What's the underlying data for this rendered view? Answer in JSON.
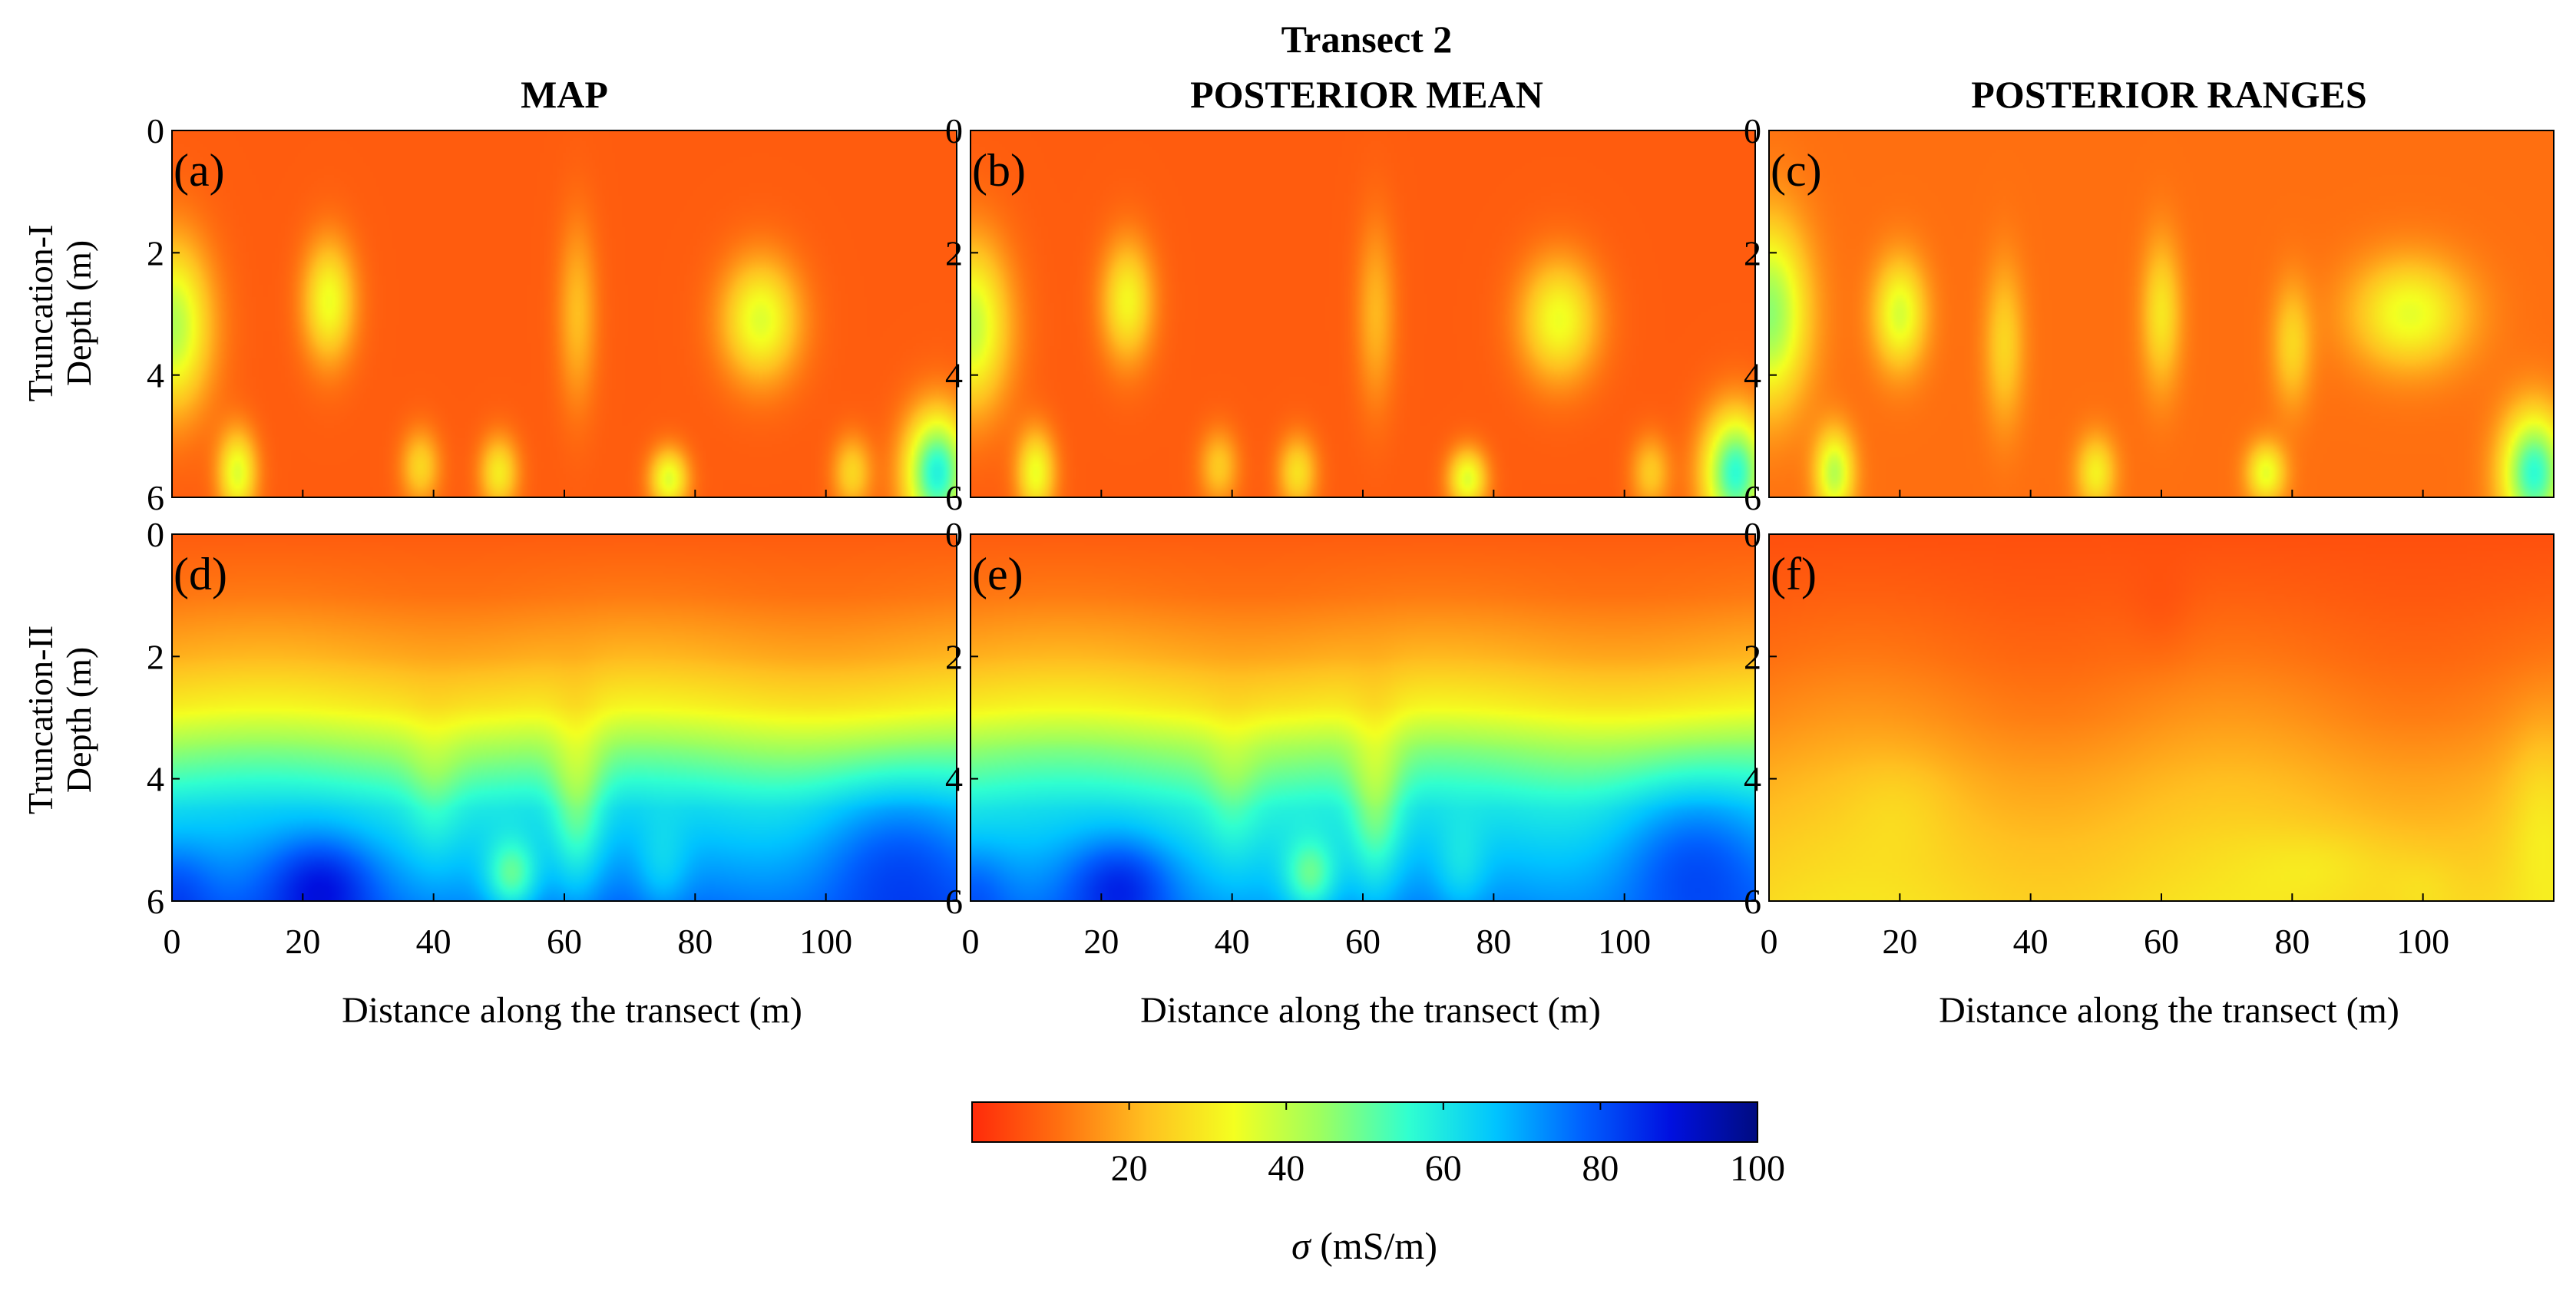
{
  "figure": {
    "title": "Transect 2",
    "column_titles": [
      "MAP",
      "POSTERIOR MEAN",
      "POSTERIOR RANGES"
    ],
    "row_labels": [
      "Truncation-I",
      "Truncation-II"
    ],
    "panel_letters": [
      "(a)",
      "(b)",
      "(c)",
      "(d)",
      "(e)",
      "(f)"
    ],
    "ylabel": "Depth (m)",
    "xlabel": "Distance along the transect (m)"
  },
  "chart_data": {
    "type": "heatmap",
    "title": "Transect 2",
    "xlabel": "Distance along the transect (m)",
    "ylabel": "Depth (m)",
    "xlim": [
      0,
      120
    ],
    "ylim": [
      0,
      6
    ],
    "x_ticks": [
      0,
      20,
      40,
      60,
      80,
      100
    ],
    "y_ticks": [
      0,
      2,
      4,
      6
    ],
    "panels": [
      {
        "id": "a",
        "row": "Truncation-I",
        "column": "MAP",
        "background": 8,
        "blobs": [
          [
            0,
            3.2,
            6,
            1.4,
            34
          ],
          [
            24,
            2.8,
            4,
            1.0,
            26
          ],
          [
            90,
            3.1,
            6,
            1.0,
            28
          ],
          [
            10,
            5.6,
            3,
            0.7,
            28
          ],
          [
            50,
            5.6,
            3,
            0.6,
            22
          ],
          [
            76,
            5.7,
            3,
            0.5,
            28
          ],
          [
            117,
            5.6,
            5,
            1.0,
            50
          ],
          [
            38,
            5.5,
            3,
            0.6,
            18
          ],
          [
            62,
            3.0,
            3,
            1.5,
            14
          ],
          [
            104,
            5.6,
            3,
            0.6,
            18
          ]
        ]
      },
      {
        "id": "b",
        "row": "Truncation-I",
        "column": "POSTERIOR MEAN",
        "background": 8,
        "blobs": [
          [
            0,
            3.2,
            6,
            1.4,
            32
          ],
          [
            24,
            2.8,
            4,
            1.0,
            24
          ],
          [
            90,
            3.1,
            6,
            1.0,
            26
          ],
          [
            10,
            5.6,
            3,
            0.7,
            26
          ],
          [
            50,
            5.6,
            3,
            0.6,
            20
          ],
          [
            76,
            5.7,
            3,
            0.5,
            28
          ],
          [
            117,
            5.6,
            5,
            1.0,
            48
          ],
          [
            38,
            5.5,
            3,
            0.6,
            16
          ],
          [
            62,
            3.0,
            3,
            1.5,
            13
          ],
          [
            104,
            5.6,
            3,
            0.6,
            16
          ]
        ]
      },
      {
        "id": "c",
        "row": "Truncation-I",
        "column": "POSTERIOR RANGES",
        "background": 11,
        "blobs": [
          [
            0,
            3.0,
            6,
            1.5,
            35
          ],
          [
            20,
            3.0,
            4,
            0.9,
            26
          ],
          [
            98,
            3.0,
            9,
            0.9,
            24
          ],
          [
            10,
            5.6,
            3,
            0.7,
            30
          ],
          [
            50,
            5.6,
            3,
            0.6,
            20
          ],
          [
            76,
            5.6,
            3,
            0.5,
            24
          ],
          [
            117,
            5.6,
            5,
            1.0,
            45
          ],
          [
            60,
            3.0,
            3,
            1.2,
            18
          ],
          [
            36,
            3.5,
            3,
            1.3,
            15
          ],
          [
            80,
            3.5,
            3,
            1.0,
            15
          ]
        ]
      },
      {
        "id": "d",
        "row": "Truncation-II",
        "column": "MAP",
        "background": 0,
        "layers": [
          [
            0,
            8
          ],
          [
            1,
            12
          ],
          [
            2,
            20
          ],
          [
            2.8,
            30
          ],
          [
            3.5,
            45
          ],
          [
            4.5,
            62
          ],
          [
            6,
            75
          ]
        ],
        "blobs": [
          [
            23,
            5.7,
            8,
            0.8,
            15
          ],
          [
            110,
            5.2,
            12,
            1.3,
            12
          ],
          [
            52,
            5.6,
            4,
            0.6,
            -20
          ],
          [
            62,
            4.5,
            4,
            1.5,
            -15
          ],
          [
            75,
            5.5,
            4,
            0.8,
            -8
          ],
          [
            40,
            4.2,
            4,
            1.2,
            -6
          ],
          [
            0,
            5.8,
            6,
            0.8,
            8
          ]
        ]
      },
      {
        "id": "e",
        "row": "Truncation-II",
        "column": "POSTERIOR MEAN",
        "background": 0,
        "layers": [
          [
            0,
            8
          ],
          [
            1,
            12
          ],
          [
            2,
            20
          ],
          [
            2.8,
            30
          ],
          [
            3.5,
            45
          ],
          [
            4.5,
            60
          ],
          [
            6,
            72
          ]
        ],
        "blobs": [
          [
            23,
            5.7,
            8,
            0.8,
            15
          ],
          [
            110,
            5.2,
            12,
            1.3,
            14
          ],
          [
            52,
            5.6,
            4,
            0.6,
            -18
          ],
          [
            62,
            4.5,
            4,
            1.5,
            -15
          ],
          [
            75,
            5.5,
            4,
            0.8,
            -8
          ],
          [
            40,
            4.2,
            4,
            1.2,
            -6
          ],
          [
            0,
            5.8,
            6,
            0.8,
            8
          ]
        ]
      },
      {
        "id": "f",
        "row": "Truncation-II",
        "column": "POSTERIOR RANGES",
        "background": 0,
        "layers": [
          [
            0,
            6
          ],
          [
            1,
            8
          ],
          [
            2,
            11
          ],
          [
            3,
            15
          ],
          [
            4,
            20
          ],
          [
            5,
            24
          ],
          [
            6,
            27
          ]
        ],
        "blobs": [
          [
            118,
            4.5,
            5,
            1.5,
            6
          ],
          [
            85,
            5.4,
            12,
            0.6,
            4
          ],
          [
            60,
            1.3,
            5,
            0.8,
            -2
          ],
          [
            20,
            4.4,
            8,
            0.8,
            3
          ],
          [
            100,
            5.8,
            6,
            0.6,
            3
          ]
        ]
      }
    ],
    "colorbar": {
      "label_symbol": "σ",
      "label_unit": " (mS/m)",
      "range": [
        0,
        100
      ],
      "ticks": [
        20,
        40,
        60,
        80,
        100
      ],
      "colormap": "jet_r",
      "colormap_stops": [
        "#ff2a0a",
        "#ff7010",
        "#ffc020",
        "#f4ff20",
        "#9cff60",
        "#30ffd0",
        "#00c4ff",
        "#0060ff",
        "#0010e0",
        "#000c80"
      ]
    }
  }
}
